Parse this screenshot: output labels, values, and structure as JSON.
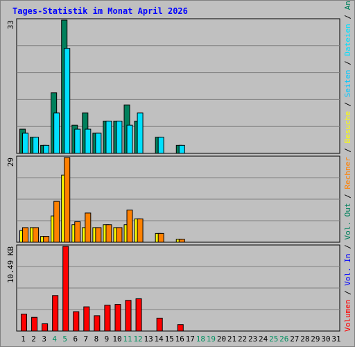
{
  "title": "Tages-Statistik im Monat April 2026",
  "colors": {
    "title": "#0000ff",
    "background": "#c0c0c0",
    "plot_bg": "#c0c0c0",
    "grid": "#808080",
    "axis_label": "#000000",
    "weekend_day": "#009060",
    "anfragen": "#00805c",
    "dateien": "#00e0ff",
    "seiten": "#00c8ff",
    "besuche": "#ffff00",
    "rechner": "#ff8000",
    "volumen": "#ff0000",
    "vol_in": "#0000ff",
    "vol_out": "#00805c",
    "separator": "#000000"
  },
  "right_legend": {
    "anfragen": "Anfragen",
    "dateien": "Dateien",
    "seiten": "Seiten",
    "besuche": "Besuche",
    "rechner": "Rechner",
    "vol_out": "Vol. Out",
    "vol_in": "Vol. In",
    "volumen": "Volumen",
    "sep": "/"
  },
  "chart_data": [
    {
      "type": "bar",
      "panel": "hits",
      "ymax_label": "33",
      "ylim": [
        0,
        33
      ],
      "x": [
        1,
        2,
        3,
        4,
        5,
        6,
        7,
        8,
        9,
        10,
        11,
        12,
        13,
        14,
        15,
        16,
        17,
        18,
        19,
        20,
        21,
        22,
        23,
        24,
        25,
        26,
        27,
        28,
        29,
        30,
        31
      ],
      "weekend_days": [
        4,
        5,
        11,
        12,
        18,
        19,
        25,
        26
      ],
      "series": [
        {
          "name": "Anfragen",
          "values": [
            6,
            4,
            2,
            15,
            33,
            7,
            10,
            5,
            8,
            8,
            12,
            8,
            0,
            4,
            0,
            2,
            0,
            0,
            0,
            0,
            0,
            0,
            0,
            0,
            0,
            0,
            0,
            0,
            0,
            0,
            0
          ]
        },
        {
          "name": "Dateien",
          "values": [
            5,
            4,
            2,
            10,
            26,
            6,
            6,
            5,
            8,
            8,
            7,
            10,
            0,
            4,
            0,
            2,
            0,
            0,
            0,
            0,
            0,
            0,
            0,
            0,
            0,
            0,
            0,
            0,
            0,
            0,
            0
          ]
        }
      ]
    },
    {
      "type": "bar",
      "panel": "visits",
      "ymax_label": "29",
      "ylim": [
        0,
        29
      ],
      "x": [
        1,
        2,
        3,
        4,
        5,
        6,
        7,
        8,
        9,
        10,
        11,
        12,
        13,
        14,
        15,
        16,
        17,
        18,
        19,
        20,
        21,
        22,
        23,
        24,
        25,
        26,
        27,
        28,
        29,
        30,
        31
      ],
      "series": [
        {
          "name": "Besuche",
          "values": [
            4,
            5,
            2,
            9,
            23,
            6,
            5,
            5,
            6,
            5,
            6,
            8,
            0,
            3,
            0,
            1,
            0,
            0,
            0,
            0,
            0,
            0,
            0,
            0,
            0,
            0,
            0,
            0,
            0,
            0,
            0
          ]
        },
        {
          "name": "Rechner",
          "values": [
            5,
            5,
            2,
            14,
            29,
            7,
            10,
            5,
            6,
            5,
            11,
            8,
            0,
            3,
            0,
            1,
            0,
            0,
            0,
            0,
            0,
            0,
            0,
            0,
            0,
            0,
            0,
            0,
            0,
            0,
            0
          ]
        }
      ]
    },
    {
      "type": "bar",
      "panel": "volume",
      "ymax_label": "10.49 KB",
      "ylim": [
        0,
        10.49
      ],
      "x": [
        1,
        2,
        3,
        4,
        5,
        6,
        7,
        8,
        9,
        10,
        11,
        12,
        13,
        14,
        15,
        16,
        17,
        18,
        19,
        20,
        21,
        22,
        23,
        24,
        25,
        26,
        27,
        28,
        29,
        30,
        31
      ],
      "series": [
        {
          "name": "Volumen",
          "values": [
            2.1,
            1.7,
            0.9,
            4.4,
            10.49,
            2.4,
            3.0,
            1.9,
            3.2,
            3.3,
            3.8,
            4.0,
            0,
            1.6,
            0,
            0.8,
            0,
            0,
            0,
            0,
            0,
            0,
            0,
            0,
            0,
            0,
            0,
            0,
            0,
            0,
            0
          ]
        }
      ]
    }
  ]
}
